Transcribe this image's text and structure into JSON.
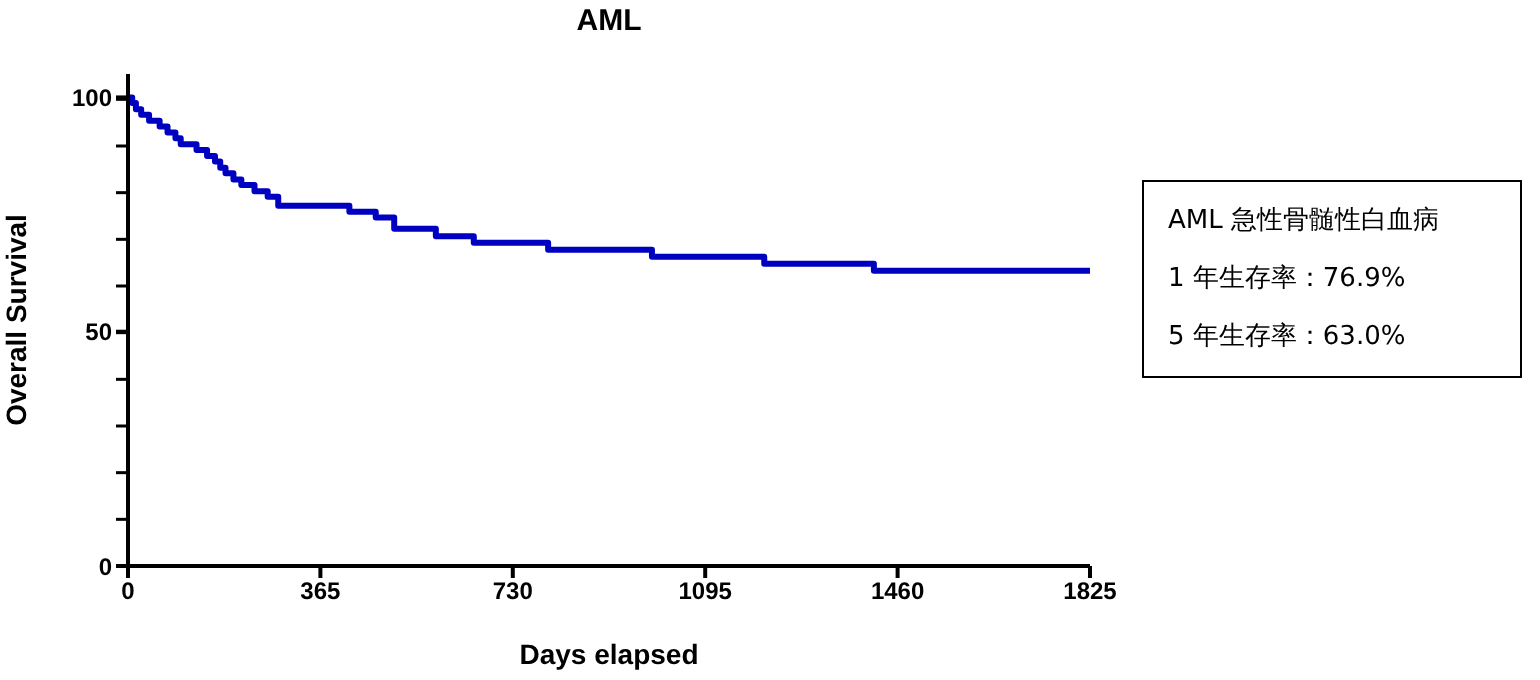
{
  "chart_data": {
    "type": "step",
    "title": "AML",
    "xlabel": "Days elapsed",
    "ylabel": "Overall Survival",
    "x": [
      0,
      8,
      15,
      25,
      40,
      60,
      75,
      90,
      100,
      130,
      150,
      165,
      175,
      185,
      200,
      215,
      240,
      265,
      285,
      420,
      470,
      505,
      584,
      656,
      797,
      994,
      1207,
      1415,
      1825
    ],
    "series": [
      {
        "color": "#0000c0",
        "values": [
          100,
          98.8,
          97.5,
          96.3,
          95,
          93.8,
          92.5,
          91.3,
          90,
          88.8,
          87.5,
          86.3,
          85,
          83.8,
          82.5,
          81.3,
          80,
          78.8,
          76.9,
          75.6,
          74.4,
          72,
          70.4,
          69,
          67.5,
          66,
          64.5,
          63,
          63
        ]
      }
    ],
    "xlim": [
      0,
      1825
    ],
    "xticks": [
      0,
      365,
      730,
      1095,
      1460,
      1825
    ],
    "ylim": [
      0,
      105
    ],
    "yticks": [
      0,
      50,
      100
    ],
    "annotations": [
      "AML  急性骨髄性白血病",
      "1 年生存率：76.9%",
      "5 年生存率：63.0%"
    ],
    "grid": false,
    "legend": false,
    "marker": "none",
    "line_style": "solid"
  }
}
